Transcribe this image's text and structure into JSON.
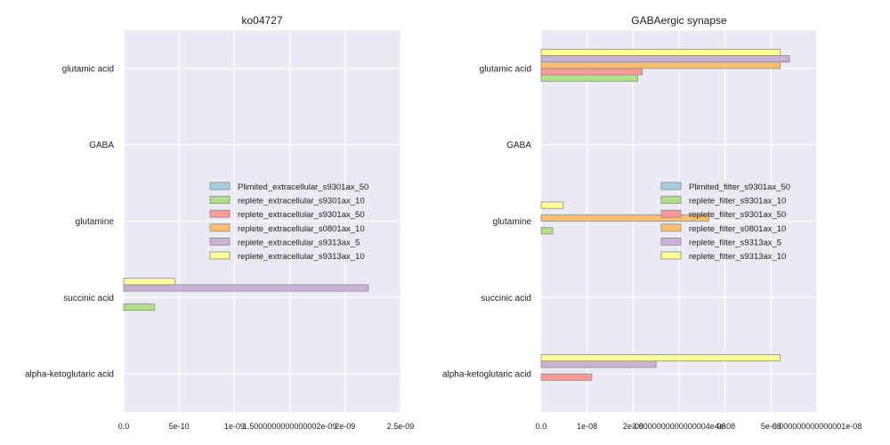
{
  "chart_data": [
    {
      "type": "bar",
      "orientation": "horizontal",
      "title": "ko04727",
      "categories": [
        "glutamic acid",
        "GABA",
        "glutamine",
        "succinic acid",
        "alpha-ketoglutaric acid"
      ],
      "xlim": [
        0,
        2.5e-09
      ],
      "xtick_labels": [
        "0.0",
        "5e-10",
        "1e-09",
        "1.5000000000000002e-09",
        "2e-09",
        "2.5e-09"
      ],
      "xtick_values": [
        0,
        5e-10,
        1e-09,
        1.5000000000000002e-09,
        2e-09,
        2.5e-09
      ],
      "grid": true,
      "legend_position": "center-right",
      "series": [
        {
          "name": "Plimited_extracellular_s9301ax_50",
          "color": "#a6cee3",
          "values": [
            0,
            0,
            0,
            0,
            0
          ]
        },
        {
          "name": "replete_extracellular_s9301ax_10",
          "color": "#b2df8a",
          "values": [
            0,
            0,
            0,
            2.8e-10,
            0
          ]
        },
        {
          "name": "replete_extracellular_s9301ax_50",
          "color": "#fb9a99",
          "values": [
            0,
            0,
            0,
            0,
            0
          ]
        },
        {
          "name": "replete_extracellular_s0801ax_10",
          "color": "#fdbf6f",
          "values": [
            0,
            0,
            0,
            0,
            0
          ]
        },
        {
          "name": "replete_extracellular_s9313ax_5",
          "color": "#cab2d6",
          "values": [
            0,
            0,
            0,
            2.21e-09,
            0
          ]
        },
        {
          "name": "replete_extracellular_s9313ax_10",
          "color": "#ffff99",
          "values": [
            0,
            0,
            0,
            4.6e-10,
            0
          ]
        }
      ]
    },
    {
      "type": "bar",
      "orientation": "horizontal",
      "title": "GABAergic synapse",
      "categories": [
        "glutamic acid",
        "GABA",
        "glutamine",
        "succinic acid",
        "alpha-ketoglutaric acid"
      ],
      "xlim": [
        0,
        6e-08
      ],
      "xtick_labels": [
        "0.0",
        "1e-08",
        "2e-08",
        "3.0000000000000004e-08",
        "4e-08",
        "5e-08",
        "6.000000000000001e-08"
      ],
      "xtick_values": [
        0,
        1e-08,
        2e-08,
        3.0000000000000004e-08,
        4e-08,
        5e-08,
        6.000000000000001e-08
      ],
      "grid": true,
      "legend_position": "center-right",
      "series": [
        {
          "name": "Plimited_filter_s9301ax_50",
          "color": "#a6cee3",
          "values": [
            0,
            0,
            0,
            0,
            0
          ]
        },
        {
          "name": "replete_filter_s9301ax_10",
          "color": "#b2df8a",
          "values": [
            2.1e-08,
            0,
            2.5e-09,
            0,
            0
          ]
        },
        {
          "name": "replete_filter_s9301ax_50",
          "color": "#fb9a99",
          "values": [
            2.2e-08,
            0,
            0,
            0,
            1.1e-08
          ]
        },
        {
          "name": "replete_filter_s0801ax_10",
          "color": "#fdbf6f",
          "values": [
            5.2e-08,
            0,
            3.65e-08,
            0,
            0
          ]
        },
        {
          "name": "replete_filter_s9313ax_5",
          "color": "#cab2d6",
          "values": [
            5.4e-08,
            0,
            0,
            0,
            2.5e-08
          ]
        },
        {
          "name": "replete_filter_s9313ax_10",
          "color": "#ffff99",
          "values": [
            5.2e-08,
            0,
            4.8e-09,
            0,
            5.2e-08
          ]
        }
      ]
    }
  ]
}
